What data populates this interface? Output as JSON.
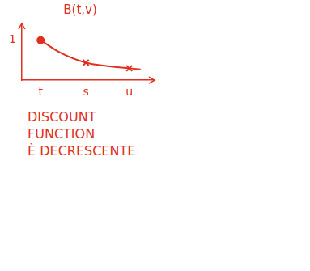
{
  "chart_data": {
    "type": "line",
    "title": "B(t,v)",
    "annotations": [
      "DISCOUNT",
      "FUNCTION",
      "È DECRESCENTE"
    ],
    "x": [
      1,
      2,
      3.4,
      4.5,
      5.7,
      6.3
    ],
    "series": [
      {
        "color": "#e0301e",
        "values": [
          1,
          0.7,
          0.44,
          0.36,
          0.3,
          0.27
        ],
        "marker": "none",
        "line_style": "solid"
      },
      {
        "color": "#e0301e",
        "values": [
          1,
          null,
          null,
          null,
          null,
          null
        ],
        "marker": "circle",
        "line_style": "none"
      },
      {
        "color": "#e0301e",
        "values": [
          null,
          null,
          0.44,
          null,
          0.3,
          null
        ],
        "marker": "cross",
        "line_style": "none"
      }
    ],
    "xlim": [
      0,
      7
    ],
    "xticks": [
      {
        "value": 1,
        "label": "t"
      },
      {
        "value": 3.4,
        "label": "s"
      },
      {
        "value": 5.7,
        "label": "u"
      }
    ],
    "ylim": [
      0,
      1.4
    ],
    "yticks": [
      1
    ],
    "grid": false,
    "color": "#e0301e"
  }
}
